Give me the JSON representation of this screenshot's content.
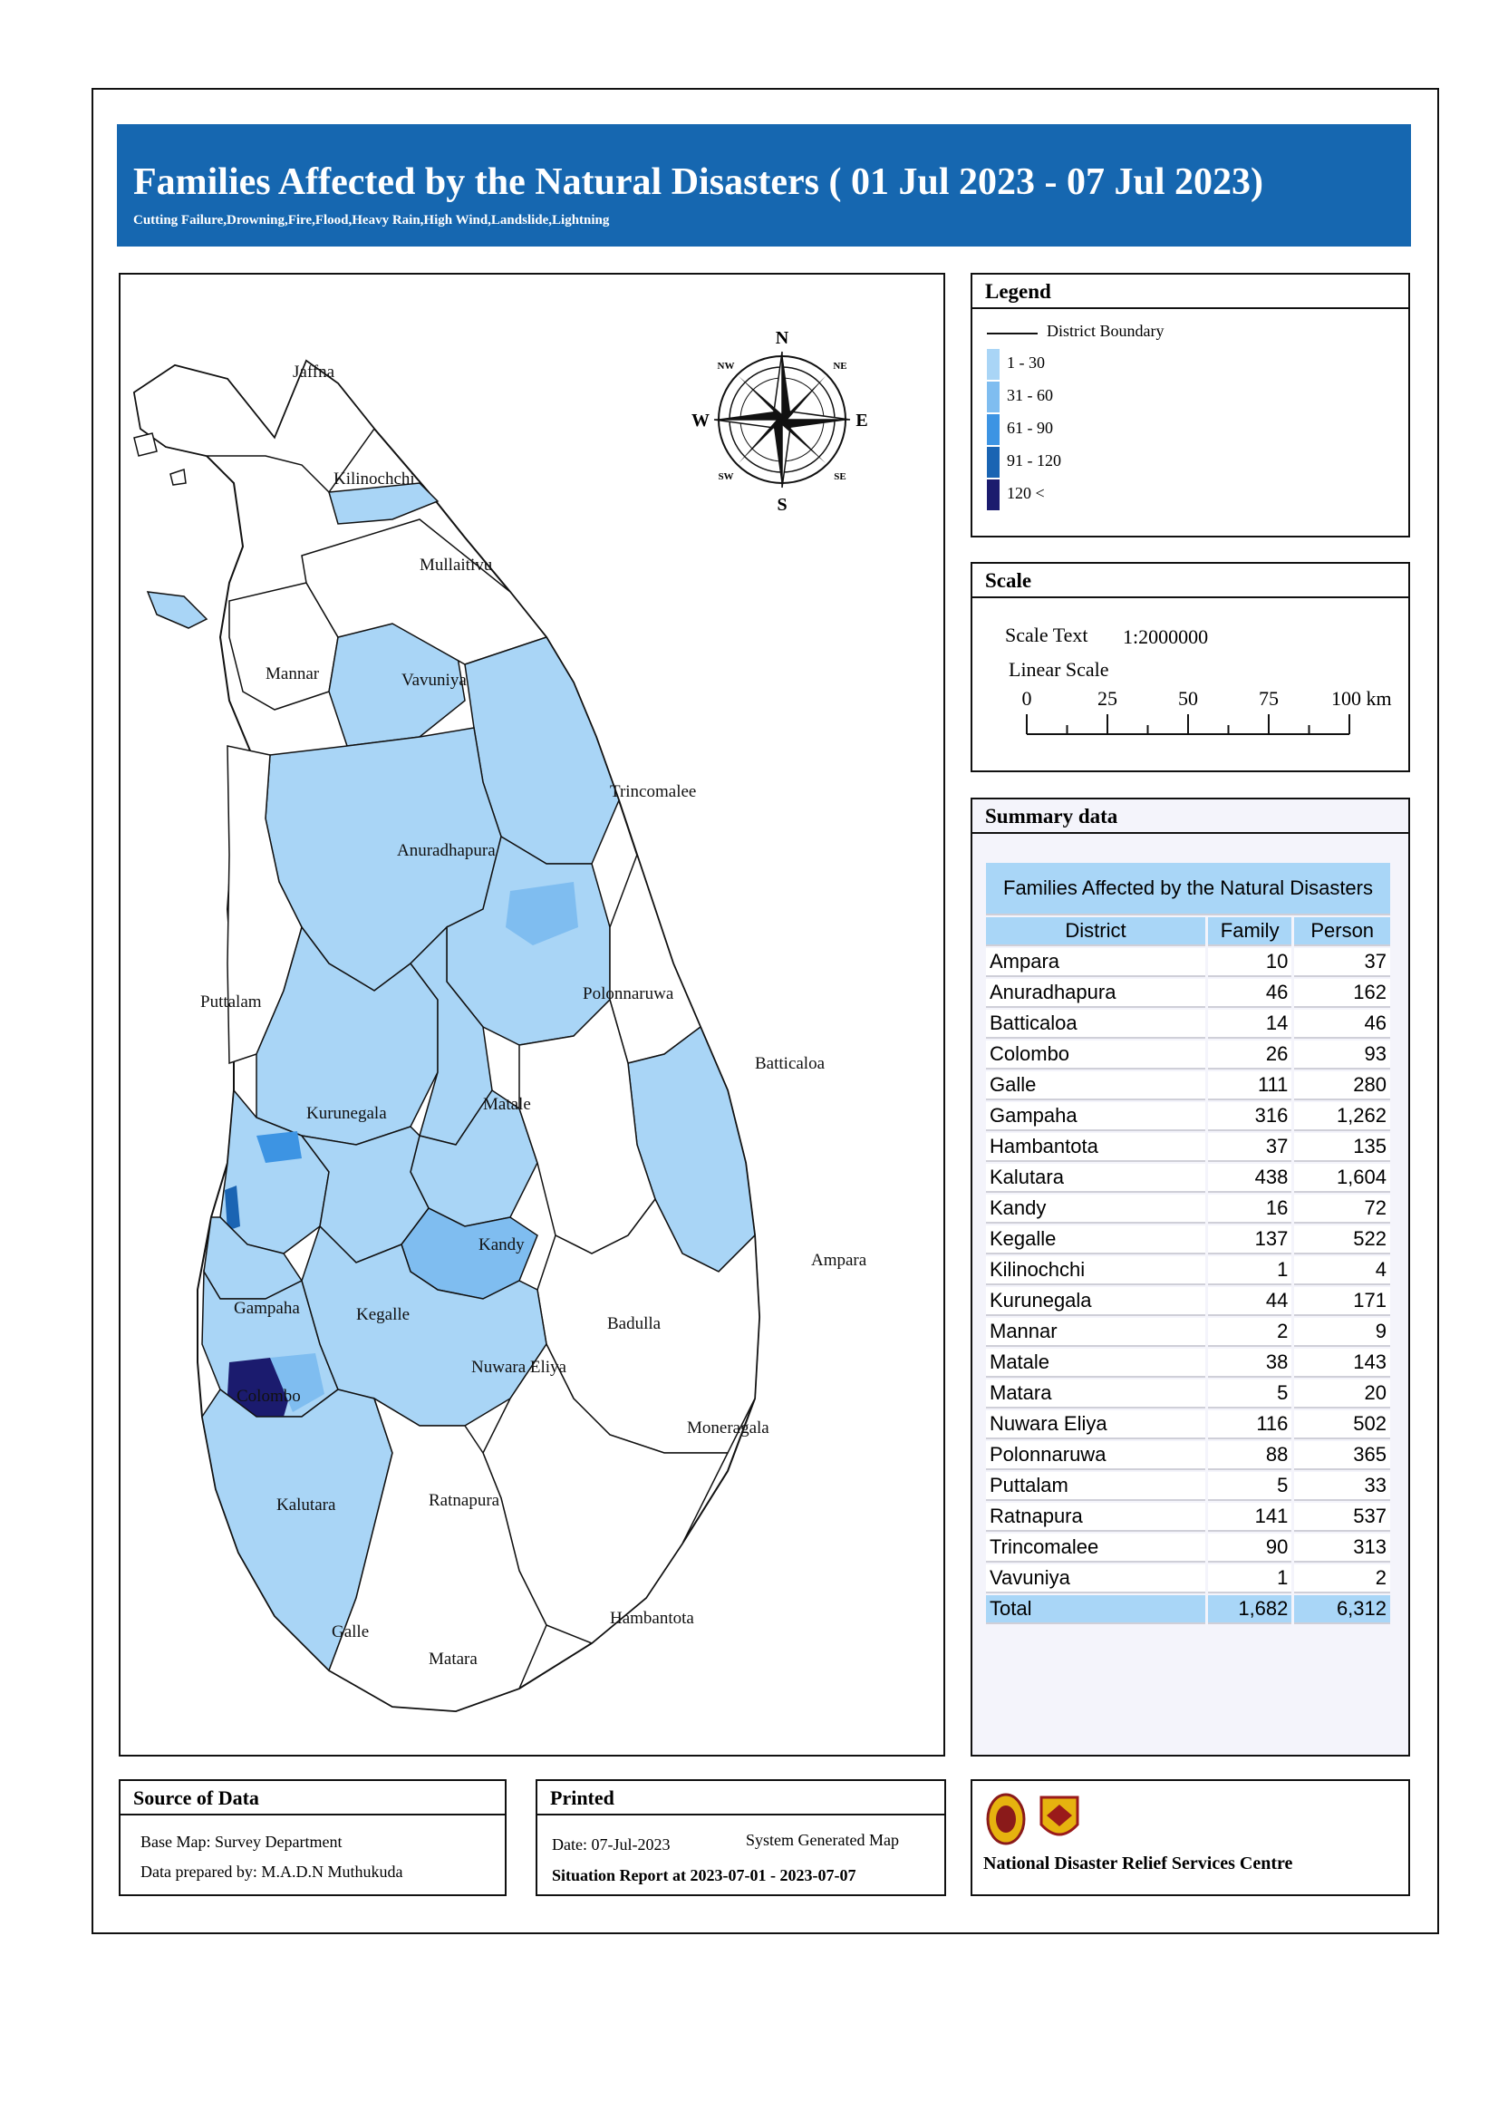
{
  "title": "Families Affected by the Natural Disasters ( 01 Jul 2023 - 07 Jul 2023)",
  "subtitle": "Cutting Failure,Drowning,Fire,Flood,Heavy Rain,High Wind,Landslide,Lightning",
  "legend": {
    "heading": "Legend",
    "boundary_label": "District Boundary",
    "classes": [
      {
        "label": "1 - 30",
        "color": "#a9d5f6"
      },
      {
        "label": "31 - 60",
        "color": "#7fbdf0"
      },
      {
        "label": "61 - 90",
        "color": "#3d94e3"
      },
      {
        "label": "91 - 120",
        "color": "#1a64b3"
      },
      {
        "label": "120 <",
        "color": "#1b1b6e"
      }
    ]
  },
  "compass": {
    "n": "N",
    "s": "S",
    "e": "E",
    "w": "W",
    "ne": "NE",
    "nw": "NW",
    "se": "SE",
    "sw": "SW"
  },
  "scale": {
    "heading": "Scale",
    "text_label": "Scale Text",
    "text_value": "1:2000000",
    "linear_label": "Linear Scale",
    "ticks": [
      "0",
      "25",
      "50",
      "75",
      "100 km"
    ]
  },
  "summary": {
    "heading": "Summary data",
    "table_title": "Families Affected by the Natural Disasters",
    "columns": [
      "District",
      "Family",
      "Person"
    ],
    "rows": [
      [
        "Ampara",
        "10",
        "37"
      ],
      [
        "Anuradhapura",
        "46",
        "162"
      ],
      [
        "Batticaloa",
        "14",
        "46"
      ],
      [
        "Colombo",
        "26",
        "93"
      ],
      [
        "Galle",
        "111",
        "280"
      ],
      [
        "Gampaha",
        "316",
        "1,262"
      ],
      [
        "Hambantota",
        "37",
        "135"
      ],
      [
        "Kalutara",
        "438",
        "1,604"
      ],
      [
        "Kandy",
        "16",
        "72"
      ],
      [
        "Kegalle",
        "137",
        "522"
      ],
      [
        "Kilinochchi",
        "1",
        "4"
      ],
      [
        "Kurunegala",
        "44",
        "171"
      ],
      [
        "Mannar",
        "2",
        "9"
      ],
      [
        "Matale",
        "38",
        "143"
      ],
      [
        "Matara",
        "5",
        "20"
      ],
      [
        "Nuwara Eliya",
        "116",
        "502"
      ],
      [
        "Polonnaruwa",
        "88",
        "365"
      ],
      [
        "Puttalam",
        "5",
        "33"
      ],
      [
        "Ratnapura",
        "141",
        "537"
      ],
      [
        "Trincomalee",
        "90",
        "313"
      ],
      [
        "Vavuniya",
        "1",
        "2"
      ]
    ],
    "total": [
      "Total",
      "1,682",
      "6,312"
    ]
  },
  "districts": [
    {
      "name": "Jaffna",
      "cls": -1
    },
    {
      "name": "Kilinochchi",
      "cls": 0
    },
    {
      "name": "Mullaitivu",
      "cls": -1
    },
    {
      "name": "Mannar",
      "cls": 0
    },
    {
      "name": "Vavuniya",
      "cls": 0
    },
    {
      "name": "Trincomalee",
      "cls": 0
    },
    {
      "name": "Anuradhapura",
      "cls": 0
    },
    {
      "name": "Puttalam",
      "cls": 0
    },
    {
      "name": "Polonnaruwa",
      "cls": 0
    },
    {
      "name": "Batticaloa",
      "cls": 0
    },
    {
      "name": "Kurunegala",
      "cls": 0
    },
    {
      "name": "Matale",
      "cls": 0
    },
    {
      "name": "Kandy",
      "cls": 0
    },
    {
      "name": "Ampara",
      "cls": 0
    },
    {
      "name": "Gampaha",
      "cls": 0
    },
    {
      "name": "Kegalle",
      "cls": 0
    },
    {
      "name": "Badulla",
      "cls": -1
    },
    {
      "name": "Nuwara Eliya",
      "cls": 1
    },
    {
      "name": "Colombo",
      "cls": 0
    },
    {
      "name": "Moneragala",
      "cls": -1
    },
    {
      "name": "Kalutara",
      "cls": 0
    },
    {
      "name": "Ratnapura",
      "cls": 0
    },
    {
      "name": "Hambantota",
      "cls": 0
    },
    {
      "name": "Galle",
      "cls": 0
    },
    {
      "name": "Matara",
      "cls": 0
    }
  ],
  "map_labels": [
    "Jaffna",
    "Kilinochchi",
    "Mullaitivu",
    "Mannar",
    "Vavuniya",
    "Trincomalee",
    "Anuradhapura",
    "Puttalam",
    "Polonnaruwa",
    "Batticaloa",
    "Kurunegala",
    "Matale",
    "Kandy",
    "Ampara",
    "Gampaha",
    "Kegalle",
    "Badulla",
    "Nuwara Eliya",
    "Colombo",
    "Moneragala",
    "Kalutara",
    "Ratnapura",
    "Hambantota",
    "Galle",
    "Matara"
  ],
  "source": {
    "heading": "Source of Data",
    "base_map": "Base Map: Survey Department",
    "prepared_by": "Data prepared by: M.A.D.N Muthukuda"
  },
  "printed": {
    "heading": "Printed",
    "date": "Date: 07-Jul-2023",
    "system": "System Generated Map",
    "report": "Situation Report at 2023-07-01  -  2023-07-07"
  },
  "org": {
    "name": "National Disaster Relief Services Centre"
  }
}
